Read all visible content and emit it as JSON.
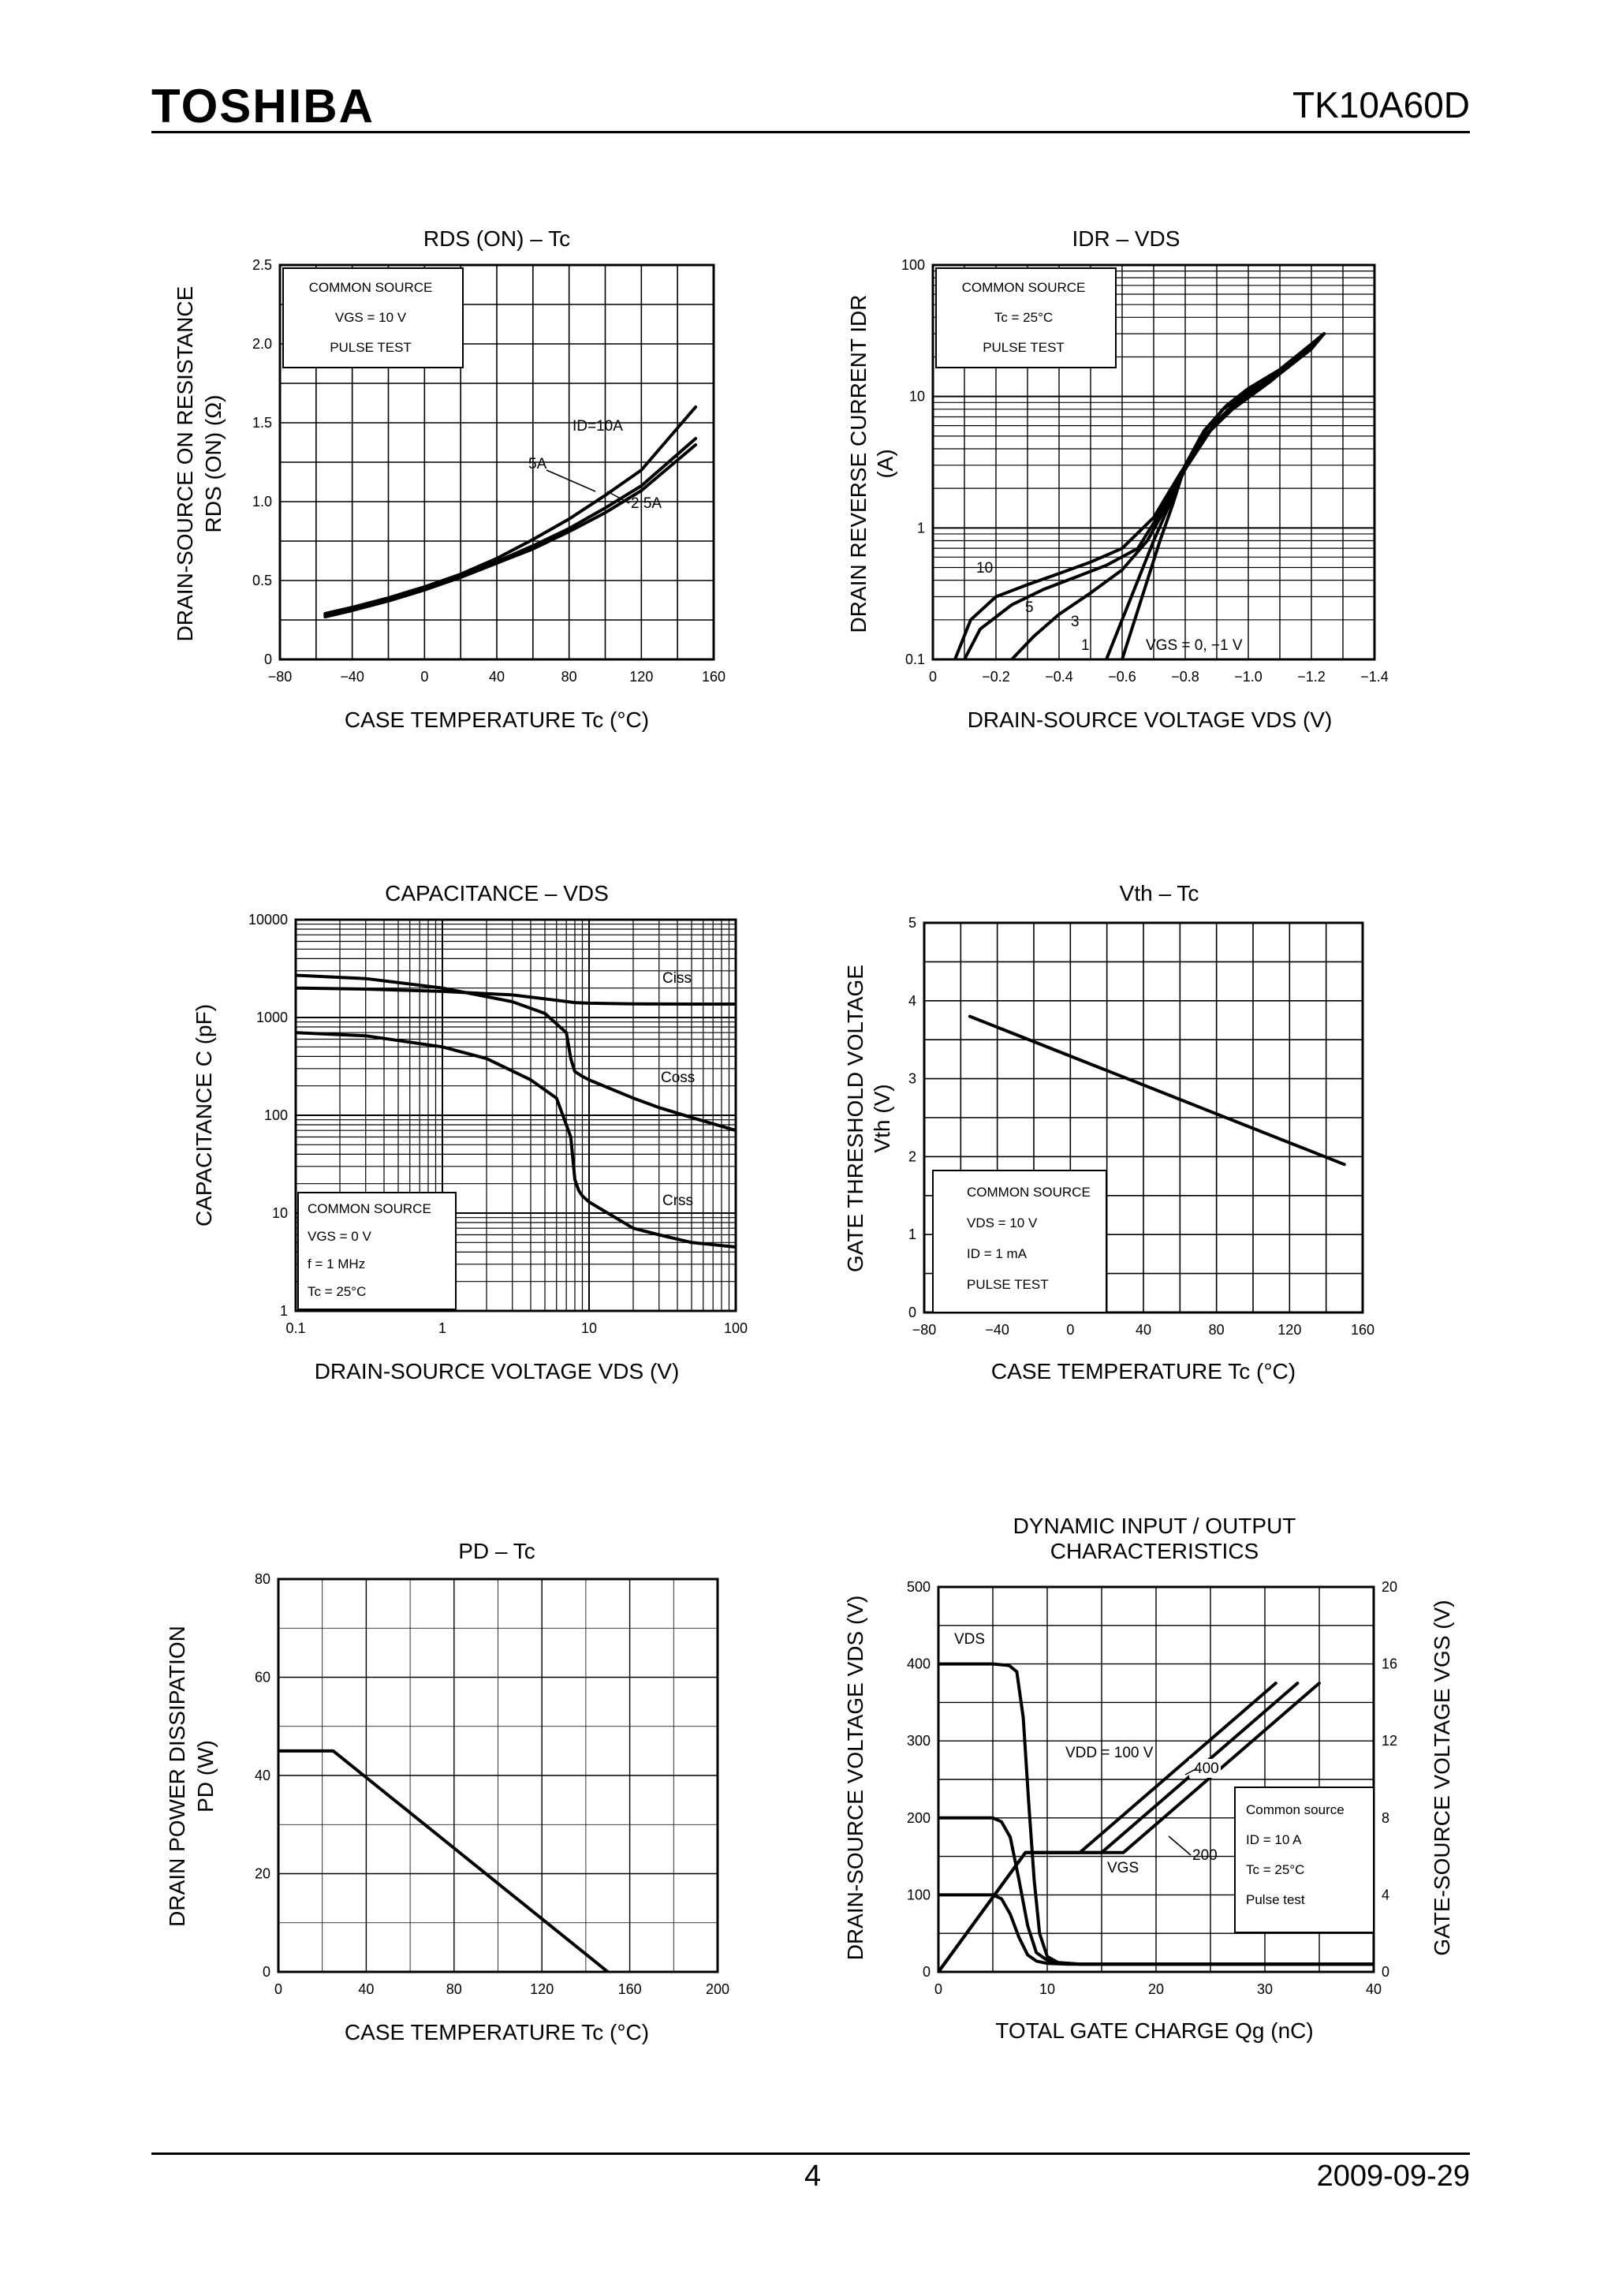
{
  "header": {
    "brand": "TOSHIBA",
    "part_number": "TK10A60D"
  },
  "footer": {
    "page_number": "4",
    "date": "2009-09-29"
  },
  "chart_data": [
    {
      "id": "rds",
      "type": "line",
      "title": "RDS (ON) – Tc",
      "xlabel": "CASE TEMPERATURE    Tc    (°C)",
      "ylabel": "DRAIN-SOURCE ON RESISTANCE",
      "ylabel2": "RDS (ON)    (Ω)",
      "xlim": [
        -80,
        160
      ],
      "ylim": [
        0,
        2.5
      ],
      "x_ticks": [
        "−80",
        "−40",
        "0",
        "40",
        "80",
        "120",
        "160"
      ],
      "y_ticks": [
        "0",
        "0.5",
        "1.0",
        "1.5",
        "2.0",
        "2.5"
      ],
      "legend": [
        "COMMON SOURCE",
        "VGS = 10 V",
        "PULSE TEST"
      ],
      "annotations": [
        "ID=10A",
        "5A",
        "2.5A"
      ],
      "series": [
        {
          "name": "ID=10A",
          "x": [
            -55,
            -40,
            -20,
            0,
            20,
            40,
            60,
            80,
            100,
            120,
            150
          ],
          "y": [
            0.29,
            0.33,
            0.39,
            0.46,
            0.54,
            0.64,
            0.76,
            0.89,
            1.04,
            1.2,
            1.6
          ]
        },
        {
          "name": "5A",
          "x": [
            -55,
            -40,
            -20,
            0,
            20,
            40,
            60,
            80,
            100,
            120,
            150
          ],
          "y": [
            0.28,
            0.32,
            0.38,
            0.45,
            0.53,
            0.62,
            0.72,
            0.83,
            0.96,
            1.1,
            1.4
          ]
        },
        {
          "name": "2.5A",
          "x": [
            -55,
            -40,
            -20,
            0,
            20,
            40,
            60,
            80,
            100,
            120,
            150
          ],
          "y": [
            0.27,
            0.31,
            0.37,
            0.44,
            0.52,
            0.61,
            0.7,
            0.81,
            0.93,
            1.07,
            1.36
          ]
        }
      ]
    },
    {
      "id": "idr",
      "type": "line",
      "title": "IDR – VDS",
      "xlabel": "DRAIN-SOURCE VOLTAGE    VDS    (V)",
      "ylabel": "DRAIN REVERSE CURRENT    IDR",
      "ylabel2": "(A)",
      "xlim": [
        0,
        -1.4
      ],
      "ylim": [
        0.1,
        100
      ],
      "yscale": "log",
      "x_ticks": [
        "0",
        "−0.2",
        "−0.4",
        "−0.6",
        "−0.8",
        "−1.0",
        "−1.2",
        "−1.4"
      ],
      "y_ticks": [
        "0.1",
        "1",
        "10",
        "100"
      ],
      "legend": [
        "COMMON SOURCE",
        "Tc = 25°C",
        "PULSE TEST"
      ],
      "annotations": [
        "10",
        "5",
        "3",
        "1",
        "VGS = 0, −1 V"
      ],
      "series": [
        {
          "name": "10",
          "x": [
            -0.07,
            -0.12,
            -0.2,
            -0.3,
            -0.4,
            -0.5,
            -0.6,
            -0.7,
            -0.78,
            -0.86,
            -0.95,
            -1.05,
            -1.2,
            -1.24
          ],
          "y": [
            0.1,
            0.2,
            0.3,
            0.37,
            0.45,
            0.55,
            0.7,
            1.2,
            2.5,
            5,
            8,
            12,
            23,
            30
          ]
        },
        {
          "name": "5",
          "x": [
            -0.1,
            -0.15,
            -0.25,
            -0.35,
            -0.45,
            -0.55,
            -0.65,
            -0.72,
            -0.8,
            -0.88,
            -0.97,
            -1.07,
            -1.2,
            -1.24
          ],
          "y": [
            0.1,
            0.17,
            0.26,
            0.34,
            0.42,
            0.52,
            0.7,
            1.3,
            2.8,
            5.5,
            9,
            13,
            24,
            30
          ]
        },
        {
          "name": "3",
          "x": [
            -0.25,
            -0.32,
            -0.4,
            -0.5,
            -0.6,
            -0.68,
            -0.75,
            -0.82,
            -0.9,
            -0.98,
            -1.08,
            -1.2,
            -1.24
          ],
          "y": [
            0.1,
            0.15,
            0.22,
            0.32,
            0.48,
            0.8,
            1.6,
            3.5,
            6.5,
            10,
            14,
            24,
            30
          ]
        },
        {
          "name": "1",
          "x": [
            -0.55,
            -0.6,
            -0.65,
            -0.7,
            -0.75,
            -0.8,
            -0.86,
            -0.93,
            -1.0,
            -1.1,
            -1.2,
            -1.24
          ],
          "y": [
            0.1,
            0.2,
            0.4,
            0.8,
            1.5,
            3,
            5.5,
            8.5,
            11.5,
            16,
            25,
            30
          ]
        },
        {
          "name": "VGS = 0, −1 V",
          "x": [
            -0.6,
            -0.64,
            -0.68,
            -0.72,
            -0.76,
            -0.8,
            -0.85,
            -0.92,
            -1.0,
            -1.1,
            -1.2,
            -1.24
          ],
          "y": [
            0.1,
            0.2,
            0.4,
            0.8,
            1.5,
            3,
            5,
            8,
            11,
            16,
            25,
            30
          ]
        }
      ]
    },
    {
      "id": "cap",
      "type": "line",
      "title": "CAPACITANCE – VDS",
      "xlabel": "DRAIN-SOURCE VOLTAGE    VDS    (V)",
      "ylabel": "CAPACITANCE    C    (pF)",
      "xlim": [
        0.1,
        100
      ],
      "ylim": [
        1,
        10000
      ],
      "xscale": "log",
      "yscale": "log",
      "x_ticks": [
        "0.1",
        "1",
        "10",
        "100"
      ],
      "y_ticks": [
        "1",
        "10",
        "100",
        "1000",
        "10000"
      ],
      "legend": [
        "COMMON SOURCE",
        "VGS = 0 V",
        "f = 1 MHz",
        "Tc = 25°C"
      ],
      "annotations": [
        "Ciss",
        "Coss",
        "Crss"
      ],
      "series": [
        {
          "name": "Ciss",
          "x": [
            0.1,
            0.3,
            1,
            3,
            6,
            8,
            10,
            20,
            50,
            100
          ],
          "y": [
            2000,
            1950,
            1850,
            1700,
            1500,
            1420,
            1400,
            1380,
            1370,
            1370
          ]
        },
        {
          "name": "Coss",
          "x": [
            0.1,
            0.3,
            1,
            3,
            5,
            7,
            7.5,
            8,
            9,
            10,
            20,
            30,
            50,
            100
          ],
          "y": [
            2700,
            2500,
            2000,
            1450,
            1100,
            700,
            380,
            280,
            250,
            230,
            150,
            120,
            95,
            70
          ]
        },
        {
          "name": "Crss",
          "x": [
            0.1,
            0.3,
            1,
            2,
            4,
            6,
            7.5,
            8,
            8.5,
            9,
            10,
            20,
            30,
            50,
            100
          ],
          "y": [
            700,
            650,
            500,
            380,
            230,
            150,
            60,
            22,
            17,
            15,
            13,
            7,
            6,
            5,
            4.5
          ]
        }
      ]
    },
    {
      "id": "vth",
      "type": "line",
      "title": "Vth – Tc",
      "xlabel": "CASE TEMPERATURE    Tc    (°C)",
      "ylabel": "GATE THRESHOLD VOLTAGE",
      "ylabel2": "Vth    (V)",
      "xlim": [
        -80,
        160
      ],
      "ylim": [
        0,
        5
      ],
      "x_ticks": [
        "−80",
        "−40",
        "0",
        "40",
        "80",
        "120",
        "160"
      ],
      "y_ticks": [
        "0",
        "1",
        "2",
        "3",
        "4",
        "5"
      ],
      "legend": [
        "COMMON SOURCE",
        "VDS = 10 V",
        "ID = 1 mA",
        "PULSE TEST"
      ],
      "series": [
        {
          "name": "Vth",
          "x": [
            -55,
            150
          ],
          "y": [
            3.8,
            1.9
          ]
        }
      ]
    },
    {
      "id": "pd",
      "type": "line",
      "title": "PD – Tc",
      "xlabel": "CASE TEMPERATURE    Tc    (°C)",
      "ylabel": "DRAIN POWER DISSIPATION",
      "ylabel2": "PD    (W)",
      "xlim": [
        0,
        200
      ],
      "ylim": [
        0,
        80
      ],
      "x_ticks": [
        "0",
        "40",
        "80",
        "120",
        "160",
        "200"
      ],
      "y_ticks": [
        "0",
        "20",
        "40",
        "60",
        "80"
      ],
      "series": [
        {
          "name": "PD",
          "x": [
            0,
            25,
            150
          ],
          "y": [
            45,
            45,
            0
          ]
        }
      ]
    },
    {
      "id": "dyn",
      "type": "line",
      "title": "DYNAMIC INPUT / OUTPUT",
      "title2": "CHARACTERISTICS",
      "xlabel": "TOTAL GATE CHARGE    Qg    (nC)",
      "ylabel": "DRAIN-SOURCE VOLTAGE    VDS    (V)",
      "ylabel_right": "GATE-SOURCE VOLTAGE    VGS    (V)",
      "xlim": [
        0,
        40
      ],
      "ylim": [
        0,
        500
      ],
      "y2lim": [
        0,
        20
      ],
      "x_ticks": [
        "0",
        "10",
        "20",
        "30",
        "40"
      ],
      "y_ticks": [
        "0",
        "100",
        "200",
        "300",
        "400",
        "500"
      ],
      "y2_ticks": [
        "0",
        "4",
        "8",
        "12",
        "16",
        "20"
      ],
      "legend": [
        "Common source",
        "ID = 10 A",
        "Tc = 25°C",
        "Pulse test"
      ],
      "annotations": [
        "VDS",
        "VDD = 100 V",
        "400",
        "200",
        "VGS"
      ],
      "series": [
        {
          "name": "VDS 400",
          "x": [
            0,
            5,
            6.5,
            7.2,
            7.8,
            8.3,
            8.8,
            9.3,
            10,
            11,
            13,
            20,
            40
          ],
          "y": [
            400,
            400,
            398,
            390,
            330,
            220,
            120,
            50,
            20,
            12,
            10,
            10,
            10
          ]
        },
        {
          "name": "VDS 200",
          "x": [
            0,
            5,
            5.8,
            6.6,
            7.4,
            8.2,
            9,
            10,
            11,
            13,
            40
          ],
          "y": [
            200,
            200,
            195,
            175,
            120,
            60,
            25,
            15,
            12,
            10,
            10
          ]
        },
        {
          "name": "VDS 100",
          "x": [
            0,
            5,
            5.8,
            6.6,
            7.4,
            8.2,
            9,
            10,
            12,
            40
          ],
          "y": [
            100,
            100,
            95,
            75,
            45,
            22,
            14,
            11,
            10,
            10
          ]
        },
        {
          "name": "VGS 100",
          "x": [
            0,
            8,
            13,
            31
          ],
          "y": [
            0,
            6.2,
            6.2,
            15
          ]
        },
        {
          "name": "VGS 200",
          "x": [
            0,
            8,
            15,
            33
          ],
          "y": [
            0,
            6.2,
            6.2,
            15
          ]
        },
        {
          "name": "VGS 400",
          "x": [
            0,
            8,
            17,
            35
          ],
          "y": [
            0,
            6.2,
            6.2,
            15
          ]
        }
      ]
    }
  ]
}
